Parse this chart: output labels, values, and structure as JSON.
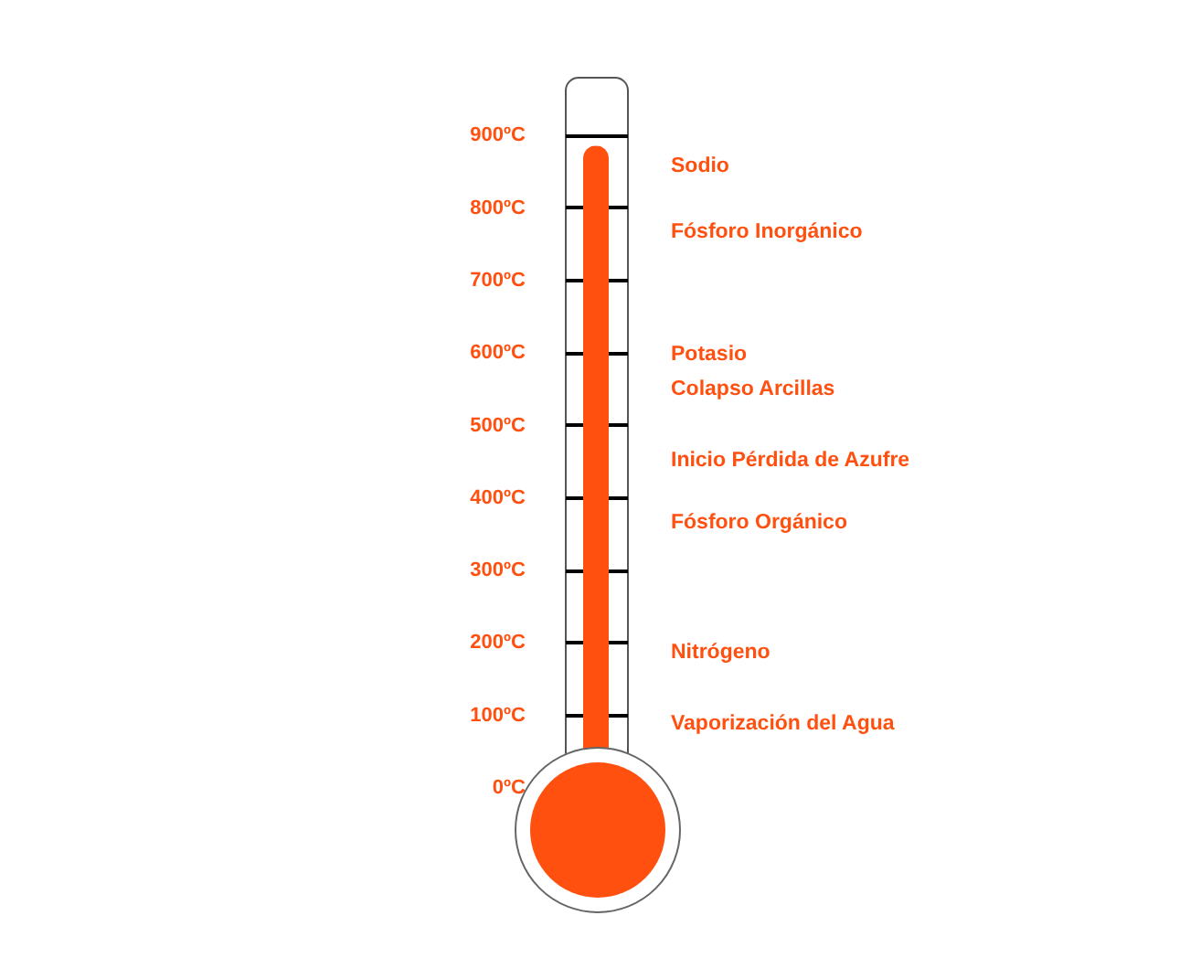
{
  "chart_data": {
    "type": "bar",
    "categories": [
      null
    ],
    "values": [
      885
    ],
    "color": "#ff5010",
    "ylim": [
      -130,
      980
    ],
    "yticks": [
      {
        "value": 0,
        "label": "0ºC"
      },
      {
        "value": 100,
        "label": "100ºC"
      },
      {
        "value": 200,
        "label": "200ºC"
      },
      {
        "value": 300,
        "label": "300ºC"
      },
      {
        "value": 400,
        "label": "400ºC"
      },
      {
        "value": 500,
        "label": "500ºC"
      },
      {
        "value": 600,
        "label": "600ºC"
      },
      {
        "value": 700,
        "label": "700ºC"
      },
      {
        "value": 800,
        "label": "800ºC"
      },
      {
        "value": 900,
        "label": "900ºC"
      }
    ],
    "grid": "y",
    "annotations": [
      "Sodio",
      "Fósforo Inorgánico",
      "Potasio",
      "Colapso Arcillas",
      "Inicio Pérdida de Azufre",
      "Fósforo Orgánico",
      "Nitrógeno",
      "Vaporización del Agua"
    ]
  }
}
